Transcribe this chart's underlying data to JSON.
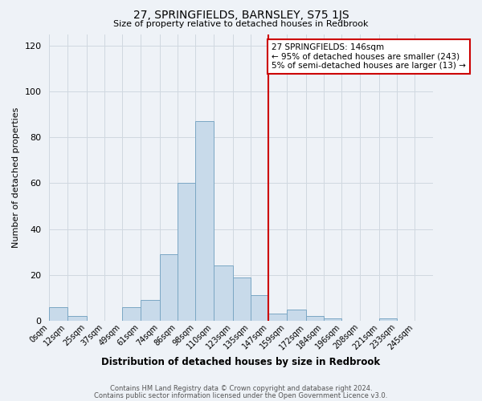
{
  "title": "27, SPRINGFIELDS, BARNSLEY, S75 1JS",
  "subtitle": "Size of property relative to detached houses in Redbrook",
  "xlabel": "Distribution of detached houses by size in Redbrook",
  "ylabel": "Number of detached properties",
  "footer_line1": "Contains HM Land Registry data © Crown copyright and database right 2024.",
  "footer_line2": "Contains public sector information licensed under the Open Government Licence v3.0.",
  "bin_labels": [
    "0sqm",
    "12sqm",
    "25sqm",
    "37sqm",
    "49sqm",
    "61sqm",
    "74sqm",
    "86sqm",
    "98sqm",
    "110sqm",
    "123sqm",
    "135sqm",
    "147sqm",
    "159sqm",
    "172sqm",
    "184sqm",
    "196sqm",
    "208sqm",
    "221sqm",
    "233sqm",
    "245sqm"
  ],
  "bar_heights": [
    6,
    2,
    0,
    0,
    6,
    9,
    29,
    60,
    87,
    24,
    19,
    11,
    3,
    5,
    2,
    1,
    0,
    0,
    1,
    0,
    0
  ],
  "bar_color": "#c8daea",
  "bar_edge_color": "#7ba7c4",
  "vline_x": 147,
  "vline_color": "#cc0000",
  "annotation_title": "27 SPRINGFIELDS: 146sqm",
  "annotation_line1": "← 95% of detached houses are smaller (243)",
  "annotation_line2": "5% of semi-detached houses are larger (13) →",
  "annotation_box_color": "#cc0000",
  "ylim": [
    0,
    125
  ],
  "yticks": [
    0,
    20,
    40,
    60,
    80,
    100,
    120
  ],
  "bin_edges": [
    0,
    12,
    25,
    37,
    49,
    61,
    74,
    86,
    98,
    110,
    123,
    135,
    147,
    159,
    172,
    184,
    196,
    208,
    221,
    233,
    245,
    257
  ],
  "bg_color": "#eef2f7",
  "plot_bg_color": "#eef2f7",
  "grid_color": "#d0d8e0"
}
